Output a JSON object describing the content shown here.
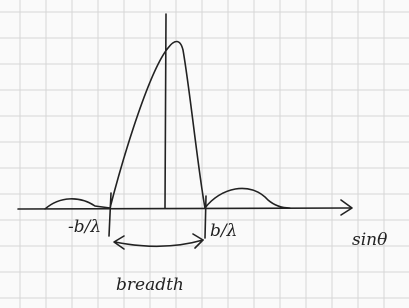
{
  "labels": {
    "left_minimum": "-b/λ",
    "right_minimum": "b/λ",
    "axis": "sinθ",
    "width": "breadth"
  }
}
